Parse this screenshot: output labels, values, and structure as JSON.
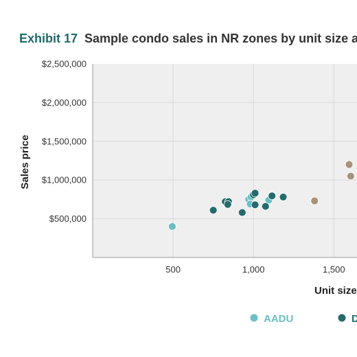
{
  "header": {
    "exhibit_label": "Exhibit 17",
    "title": "Sample condo sales in NR zones by unit size a"
  },
  "chart_data": {
    "type": "scatter",
    "title": "Sample condo sales in NR zones by unit size a",
    "xlabel": "Unit size",
    "ylabel": "Sales price",
    "xlim": [
      0,
      2250
    ],
    "ylim": [
      0,
      2500000
    ],
    "x_ticks": [
      500,
      1000,
      1500
    ],
    "x_tick_labels": [
      "500",
      "1,000",
      "1,500"
    ],
    "y_ticks": [
      500000,
      1000000,
      1500000,
      2000000,
      2500000
    ],
    "y_tick_labels": [
      "$500,000",
      "$1,000,000",
      "$1,500,000",
      "$2,000,000",
      "$2,500,000"
    ],
    "grid": true,
    "legend_position": "bottom",
    "series": [
      {
        "name": "AADU",
        "color": "#6bbfc4",
        "points": [
          {
            "x": 495,
            "y": 400000
          },
          {
            "x": 970,
            "y": 750000
          },
          {
            "x": 985,
            "y": 780000
          },
          {
            "x": 980,
            "y": 690000
          },
          {
            "x": 1095,
            "y": 740000
          }
        ]
      },
      {
        "name": "D",
        "color": "#256b6b",
        "points": [
          {
            "x": 750,
            "y": 610000
          },
          {
            "x": 825,
            "y": 720000
          },
          {
            "x": 845,
            "y": 720000
          },
          {
            "x": 840,
            "y": 685000
          },
          {
            "x": 930,
            "y": 580000
          },
          {
            "x": 1000,
            "y": 810000
          },
          {
            "x": 1010,
            "y": 830000
          },
          {
            "x": 1010,
            "y": 680000
          },
          {
            "x": 1075,
            "y": 660000
          },
          {
            "x": 1115,
            "y": 795000
          },
          {
            "x": 1185,
            "y": 780000
          }
        ]
      },
      {
        "color": "#a89279",
        "points": [
          {
            "x": 1380,
            "y": 730000
          },
          {
            "x": 1595,
            "y": 1200000
          },
          {
            "x": 1605,
            "y": 1050000
          }
        ]
      }
    ]
  }
}
